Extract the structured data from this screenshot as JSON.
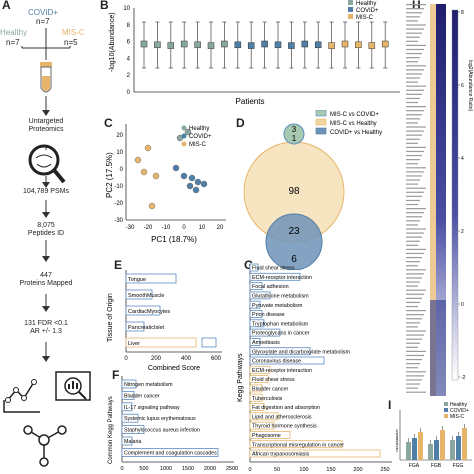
{
  "colors": {
    "healthy": "#8aa6a0",
    "covid": "#4f7fa6",
    "misc": "#e7b56a",
    "misc_venn": "#f2d6a0",
    "covid_venn": "#6e93b8",
    "healthy_venn": "#a6c9b0",
    "bar_outline": "#5b8ac0",
    "heatmap_dark": "#1f1e6e",
    "heatmap_light": "#cfd2ea"
  },
  "panel_a": {
    "label": "A",
    "covid_label": "COVID+",
    "covid_n": "n=7",
    "healthy_label": "Healthy",
    "healthy_n": "n=7",
    "misc_label": "MIS-C",
    "misc_n": "n=5",
    "step1": "Untargeted\nProteomics",
    "step2": "104,789 PSMs",
    "step3": "8,075\nPeptides ID",
    "step4": "447\nProteins Mapped",
    "step5": "131 FDR <0.1\nAR +/- 1.3"
  },
  "panel_b": {
    "label": "B",
    "ylabel": "-log10(Abundance)",
    "xlabel": "Patients",
    "legend": [
      "Healthy",
      "COVID+",
      "MIS-C"
    ],
    "yticks": [
      "0",
      "2",
      "4",
      "6",
      "8",
      "10"
    ]
  },
  "panel_c": {
    "label": "C",
    "xlabel": "PC1 (18.7%)",
    "ylabel": "PC2 (17.5%)",
    "legend": [
      "Healthy",
      "COVID+",
      "MIS-C"
    ],
    "xticks": [
      "-30",
      "-20",
      "-10",
      "0",
      "10",
      "20"
    ],
    "yticks": [
      "-30",
      "-20",
      "-10",
      "0",
      "10",
      "20"
    ]
  },
  "panel_d": {
    "label": "D",
    "legend": [
      "MIS-C vs COVID+",
      "MIS-C vs Healthy",
      "COVID+ vs Healthy"
    ],
    "n_top": "3",
    "n_top2": "1",
    "n_misc": "98",
    "n_overlap": "23",
    "n_covid": "6"
  },
  "panel_e": {
    "label": "E",
    "ylabel": "Tissue of Origin",
    "xlabel": "Combined Score",
    "xticks": [
      "0",
      "200",
      "400",
      "600"
    ],
    "items": [
      "Tongue",
      "SmoothMuscle",
      "CardiacMyocytes",
      "PancreaticIslet",
      "Liver"
    ]
  },
  "panel_f": {
    "label": "F",
    "ylabel": "Common Kegg Pathways",
    "xticks": [
      "0",
      "500",
      "1000",
      "1500",
      "2000",
      "2500"
    ],
    "items": [
      "Nitrogen metabolism",
      "Bladder cancer",
      "IL-17 signaling pathway",
      "Systemic lupus erythematosus",
      "Staphylococcus aureus infection",
      "Malaria",
      "Complement and coagulation cascades"
    ]
  },
  "panel_g": {
    "label": "G",
    "ylabel": "Kegg Pathways",
    "xticks": [
      "0",
      "50",
      "100",
      "150",
      "200",
      "250"
    ],
    "items": [
      "Fluid shear stress",
      "ECM-receptor interaction",
      "Focal adhesion",
      "Glutathione metabolism",
      "Pyruvate metabolism",
      "Prion disease",
      "Tryptophan metabolism",
      "Proteoglycans in cancer",
      "Amoebiasis",
      "Glyoxylate and dicarboxylate metabolism",
      "Coronavirus disease",
      "ECM-receptor interaction",
      "Fluid shear stress",
      "Bladder cancer",
      "Tuberculosis",
      "Fat digestion and absorption",
      "Lipid and atherosclerosis",
      "Thyroid hormone synthesis",
      "Phagosome",
      "Transcriptional misregulation in cancer",
      "African trypanosomiasis"
    ]
  },
  "panel_h": {
    "label": "H",
    "scale_label": "log2(Abundance Ratio)",
    "scale_ticks": [
      "8",
      "6",
      "4",
      "2",
      "0",
      "-2"
    ]
  },
  "panel_i": {
    "label": "I",
    "legend": [
      "Healthy",
      "COVID+",
      "MIS-C"
    ],
    "ylabel": "Abundance",
    "xticks": [
      "FGA",
      "FGB",
      "FGG"
    ]
  }
}
